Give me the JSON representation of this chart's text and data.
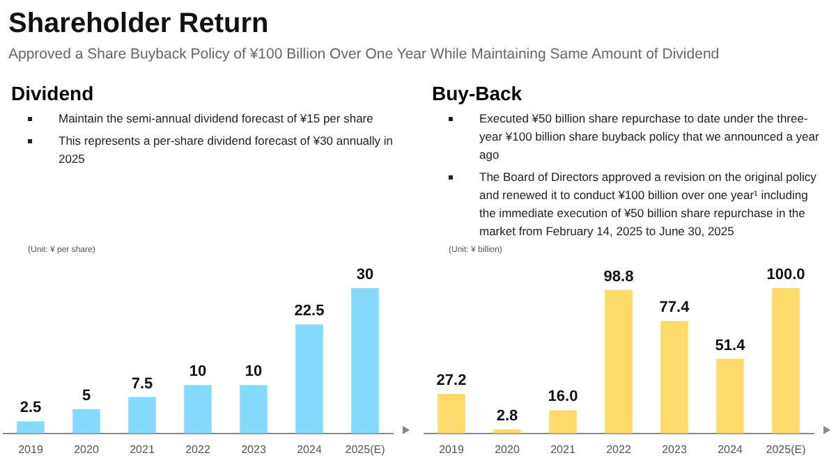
{
  "chart_data": [
    {
      "type": "other",
      "title": "Shareholder Return",
      "subtitle": "Approved a Share Buyback Policy of ¥100 Billion Over One Year While Maintaining Same Amount of Dividend"
    },
    {
      "type": "bar",
      "title": "Dividend",
      "ylabel": "(Unit: ¥ per share)",
      "annotations": [
        "Maintain the semi-annual dividend forecast of ¥15 per share",
        "This represents a per-share dividend forecast of ¥30 annually in 2025"
      ],
      "categories": [
        "2019",
        "2020",
        "2021",
        "2022",
        "2023",
        "2024",
        "2025(E)"
      ],
      "values": [
        2.5,
        5,
        7.5,
        10,
        10,
        22.5,
        30
      ],
      "color": "#84dbfb",
      "data_labels": true,
      "grid": false,
      "legend": false
    },
    {
      "type": "bar",
      "title": "Buy-Back",
      "ylabel": "(Unit: ¥ billion)",
      "annotations": [
        "Executed ¥50 billion share repurchase to date under the three-year ¥100 billion share buyback policy that we announced a year ago",
        "The Board of Directors approved a revision on the original policy and renewed it to conduct ¥100 billion over one year¹ including the immediate execution of ¥50 billion share repurchase in the market from February 14, 2025 to June 30, 2025"
      ],
      "categories": [
        "2019",
        "2020",
        "2021",
        "2022",
        "2023",
        "2024",
        "2025(E)"
      ],
      "values": [
        27.2,
        2.8,
        16.0,
        98.8,
        77.4,
        51.4,
        100.0
      ],
      "value_labels": [
        "27.2",
        "2.8",
        "16.0",
        "98.8",
        "77.4",
        "51.4",
        "100.0"
      ],
      "color": "#fedb6b",
      "data_labels": true,
      "grid": false,
      "legend": false
    }
  ]
}
